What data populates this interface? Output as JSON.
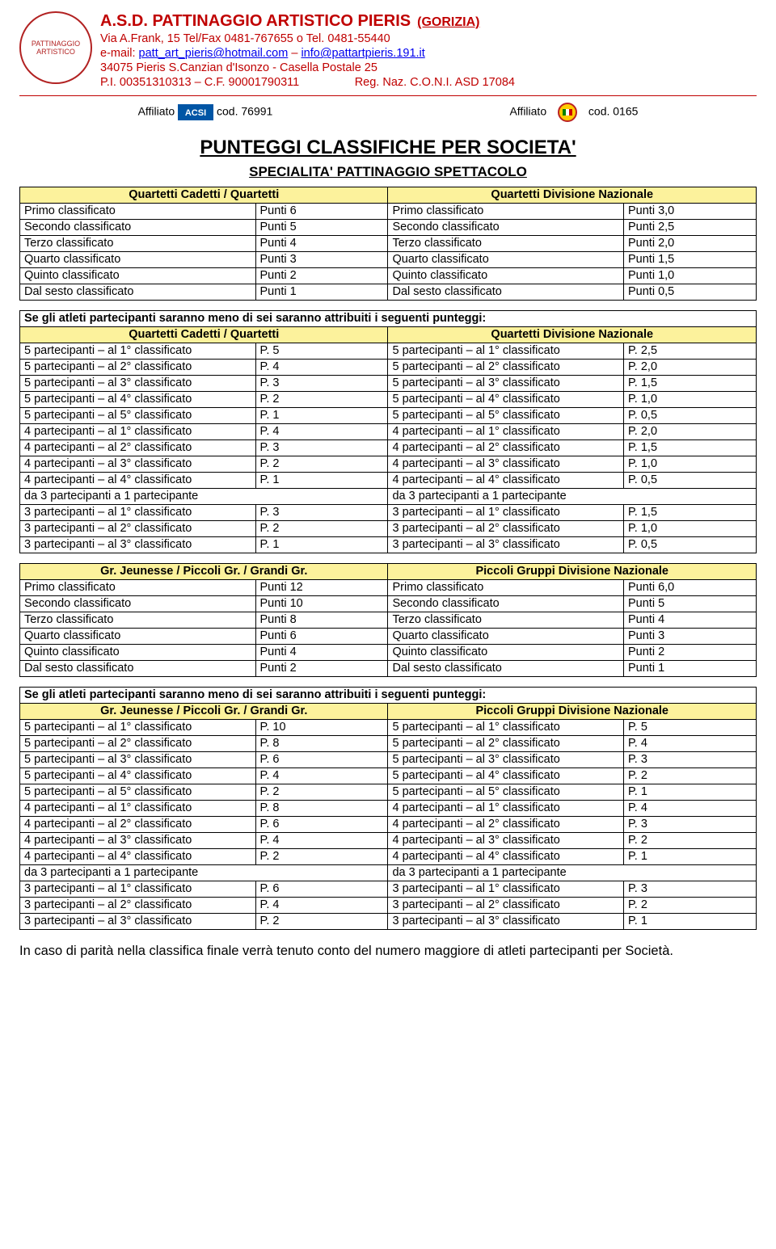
{
  "header": {
    "org_name": "A.S.D. PATTINAGGIO ARTISTICO PIERIS",
    "city": "(GORIZIA)",
    "addr": "Via A.Frank, 15  Tel/Fax 0481-767655 o Tel. 0481-55440",
    "email_label": "e-mail:",
    "email1": "patt_art_pieris@hotmail.com",
    "email_sep": " – ",
    "email2": "info@pattartpieris.191.it",
    "addr2": "34075 Pieris  S.Canzian d'Isonzo - Casella Postale 25",
    "pi": "P.I. 00351310313 – C.F. 90001790311",
    "reg": "Reg. Naz. C.O.N.I. ASD 17084",
    "logo_text": "PATTINAGGIO ARTISTICO"
  },
  "affil": {
    "label": "Affiliato",
    "cod1": "cod. 76991",
    "cod2": "cod. 0165"
  },
  "titles": {
    "main": "PUNTEGGI  CLASSIFICHE PER SOCIETA'",
    "sub": "SPECIALITA' PATTINAGGIO  SPETTACOLO"
  },
  "lessThanSix": "Se gli atleti partecipanti saranno meno di sei saranno attribuiti i seguenti punteggi:",
  "finalNote": "In caso di parità nella classifica finale verrà tenuto conto del numero maggiore di atleti partecipanti per Società.",
  "block1": {
    "leftHdr": "Quartetti Cadetti /  Quartetti",
    "rightHdr": "Quartetti  Divisione  Nazionale",
    "rows": [
      {
        "ld": "Primo classificato",
        "lp": "Punti   6",
        "rd": "Primo classificato",
        "rp": "Punti   3,0"
      },
      {
        "ld": "Secondo classificato",
        "lp": "Punti   5",
        "rd": "Secondo classificato",
        "rp": "Punti   2,5"
      },
      {
        "ld": "Terzo classificato",
        "lp": "Punti   4",
        "rd": "Terzo classificato",
        "rp": "Punti   2,0"
      },
      {
        "ld": "Quarto classificato",
        "lp": "Punti   3",
        "rd": "Quarto classificato",
        "rp": "Punti   1,5"
      },
      {
        "ld": "Quinto classificato",
        "lp": "Punti   2",
        "rd": "Quinto classificato",
        "rp": "Punti   1,0"
      },
      {
        "ld": "Dal sesto classificato",
        "lp": "Punti   1",
        "rd": "Dal sesto classificato",
        "rp": "Punti   0,5"
      }
    ]
  },
  "block1b": {
    "leftHdr": "Quartetti Cadetti /  Quartetti",
    "rightHdr": "Quartetti  Divisione  Nazionale",
    "rows": [
      {
        "ld": "5 partecipanti – al 1° classificato",
        "lp": "P. 5",
        "rd": "5 partecipanti – al 1° classificato",
        "rp": "P. 2,5"
      },
      {
        "ld": "5 partecipanti – al 2° classificato",
        "lp": "P. 4",
        "rd": "5 partecipanti – al 2° classificato",
        "rp": "P. 2,0"
      },
      {
        "ld": "5 partecipanti – al 3° classificato",
        "lp": "P. 3",
        "rd": "5 partecipanti – al 3° classificato",
        "rp": "P. 1,5"
      },
      {
        "ld": "5 partecipanti – al 4° classificato",
        "lp": "P. 2",
        "rd": "5 partecipanti – al 4° classificato",
        "rp": "P. 1,0"
      },
      {
        "ld": "5 partecipanti – al 5° classificato",
        "lp": "P. 1",
        "rd": "5 partecipanti – al 5° classificato",
        "rp": "P. 0,5"
      },
      {
        "ld": "4 partecipanti – al 1° classificato",
        "lp": "P. 4",
        "rd": "4 partecipanti – al 1° classificato",
        "rp": "P. 2,0"
      },
      {
        "ld": "4 partecipanti – al 2° classificato",
        "lp": "P. 3",
        "rd": "4 partecipanti – al 2° classificato",
        "rp": "P. 1,5"
      },
      {
        "ld": "4 partecipanti – al 3° classificato",
        "lp": "P. 2",
        "rd": "4 partecipanti – al 3° classificato",
        "rp": "P. 1,0"
      },
      {
        "ld": "4 partecipanti – al 4° classificato",
        "lp": "P. 1",
        "rd": "4 partecipanti – al 4° classificato",
        "rp": "P. 0,5"
      },
      {
        "ld": "da 3 partecipanti a 1 partecipante",
        "lp": "",
        "rd": "da 3 partecipanti a 1 partecipante",
        "rp": ""
      },
      {
        "ld": "3 partecipanti – al 1° classificato",
        "lp": "P. 3",
        "rd": "3 partecipanti – al 1° classificato",
        "rp": "P. 1,5"
      },
      {
        "ld": "3 partecipanti – al 2° classificato",
        "lp": "P. 2",
        "rd": "3 partecipanti – al 2° classificato",
        "rp": "P. 1,0"
      },
      {
        "ld": "3 partecipanti – al 3° classificato",
        "lp": "P. 1",
        "rd": "3 partecipanti – al 3° classificato",
        "rp": "P. 0,5"
      }
    ],
    "mergeColsRows": [
      9
    ]
  },
  "block2": {
    "leftHdr": "Gr. Jeunesse / Piccoli Gr. / Grandi Gr.",
    "rightHdr": "Piccoli Gruppi   Divisione  Nazionale",
    "rows": [
      {
        "ld": "Primo classificato",
        "lp": "Punti   12",
        "rd": "Primo classificato",
        "rp": "Punti   6,0"
      },
      {
        "ld": "Secondo classificato",
        "lp": "Punti   10",
        "rd": "Secondo classificato",
        "rp": "Punti   5"
      },
      {
        "ld": "Terzo classificato",
        "lp": "Punti    8",
        "rd": "Terzo classificato",
        "rp": "Punti   4"
      },
      {
        "ld": "Quarto classificato",
        "lp": "Punti    6",
        "rd": "Quarto classificato",
        "rp": "Punti   3"
      },
      {
        "ld": "Quinto classificato",
        "lp": "Punti    4",
        "rd": "Quinto classificato",
        "rp": "Punti   2"
      },
      {
        "ld": "Dal sesto classificato",
        "lp": "Punti    2",
        "rd": "Dal sesto classificato",
        "rp": "Punti   1"
      }
    ]
  },
  "block2b": {
    "leftHdr": "Gr. Jeunesse / Piccoli Gr. / Grandi Gr.",
    "rightHdr": "Piccoli Gruppi   Divisione  Nazionale",
    "rows": [
      {
        "ld": "5 partecipanti – al 1° classificato",
        "lp": "P. 10",
        "rd": "5 partecipanti – al 1° classificato",
        "rp": "P.  5"
      },
      {
        "ld": "5 partecipanti – al 2° classificato",
        "lp": "P.  8",
        "rd": "5 partecipanti – al 2° classificato",
        "rp": "P.  4"
      },
      {
        "ld": "5 partecipanti – al 3° classificato",
        "lp": "P.  6",
        "rd": "5 partecipanti – al 3° classificato",
        "rp": "P.  3"
      },
      {
        "ld": "5 partecipanti – al 4° classificato",
        "lp": "P.  4",
        "rd": "5 partecipanti – al 4° classificato",
        "rp": "P.  2"
      },
      {
        "ld": "5 partecipanti – al 5° classificato",
        "lp": "P.  2",
        "rd": "5 partecipanti – al 5° classificato",
        "rp": "P.  1"
      },
      {
        "ld": "4 partecipanti – al 1° classificato",
        "lp": "P.  8",
        "rd": "4 partecipanti – al 1° classificato",
        "rp": "P.  4"
      },
      {
        "ld": "4 partecipanti – al 2° classificato",
        "lp": "P.  6",
        "rd": "4 partecipanti – al 2° classificato",
        "rp": "P.  3"
      },
      {
        "ld": "4 partecipanti – al 3° classificato",
        "lp": "P.  4",
        "rd": "4 partecipanti – al 3° classificato",
        "rp": "P.  2"
      },
      {
        "ld": "4 partecipanti – al 4° classificato",
        "lp": "P.  2",
        "rd": "4 partecipanti – al 4° classificato",
        "rp": "P.  1"
      },
      {
        "ld": "da 3 partecipanti a 1 partecipante",
        "lp": "",
        "rd": "da 3 partecipanti a 1 partecipante",
        "rp": ""
      },
      {
        "ld": "3 partecipanti – al 1° classificato",
        "lp": "P.  6",
        "rd": "3 partecipanti – al 1° classificato",
        "rp": "P.  3"
      },
      {
        "ld": "3 partecipanti – al 2° classificato",
        "lp": "P.  4",
        "rd": "3 partecipanti – al 2° classificato",
        "rp": "P.  2"
      },
      {
        "ld": "3 partecipanti – al 3° classificato",
        "lp": "P.  2",
        "rd": "3 partecipanti – al 3° classificato",
        "rp": "P.  1"
      }
    ],
    "mergeColsRows": [
      9
    ]
  },
  "style": {
    "header_bg": "#fcf29c",
    "border_color": "#000000",
    "org_color": "#c00000",
    "link_color": "#0000ee",
    "body_fontsize": 14,
    "title_fontsize": 24,
    "subtitle_fontsize": 17
  }
}
